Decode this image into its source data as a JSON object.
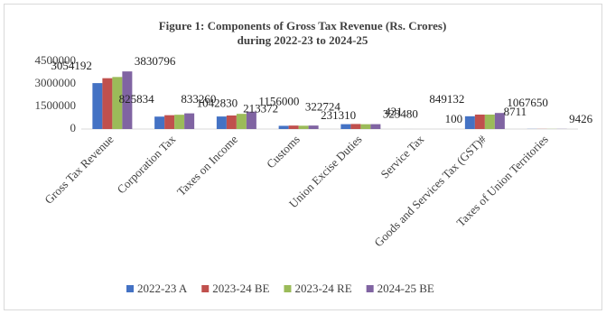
{
  "chart_data": {
    "type": "bar",
    "title": "Figure 1: Components of Gross Tax Revenue (Rs. Crores)",
    "subtitle": "during 2022-23 to 2024-25",
    "categories": [
      "Gross Tax Revenue",
      "Corporation Tax",
      "Taxes on Income",
      "Customs",
      "Union Excise Duties",
      "Service Tax",
      "Goods and Services Tax (GST)#",
      "Taxes of Union Territories"
    ],
    "series": [
      {
        "name": "2022-23 A",
        "color": "#4472c4",
        "values": [
          3054192,
          825834,
          833260,
          213372,
          322724,
          431,
          849132,
          8711
        ],
        "value_labels": [
          "3054192",
          "825834",
          "833260",
          "213372",
          "322724",
          "431",
          "849132",
          "8711"
        ]
      },
      {
        "name": "2023-24 BE",
        "color": "#c0504d",
        "values": [
          3380000,
          920000,
          900000,
          230000,
          335000,
          0,
          960000,
          9000
        ],
        "value_labels": [
          null,
          null,
          null,
          null,
          null,
          null,
          null,
          null
        ]
      },
      {
        "name": "2023-24 RE",
        "color": "#9bbb59",
        "values": [
          3460000,
          950000,
          1010000,
          220000,
          320000,
          0,
          960000,
          9000
        ],
        "value_labels": [
          null,
          null,
          null,
          null,
          null,
          null,
          null,
          null
        ]
      },
      {
        "name": "2024-25 BE",
        "color": "#8064a2",
        "values": [
          3830796,
          1042830,
          1156000,
          231310,
          323480,
          100,
          1067650,
          9426
        ],
        "value_labels": [
          "3830796",
          "1042830",
          "1156000",
          "231310",
          "323480",
          "100",
          "1067650",
          "9426"
        ]
      }
    ],
    "ylim": [
      0,
      4500000
    ],
    "yticks": [
      0,
      1500000,
      3000000,
      4500000
    ],
    "grid": false,
    "legend": "bottom"
  }
}
